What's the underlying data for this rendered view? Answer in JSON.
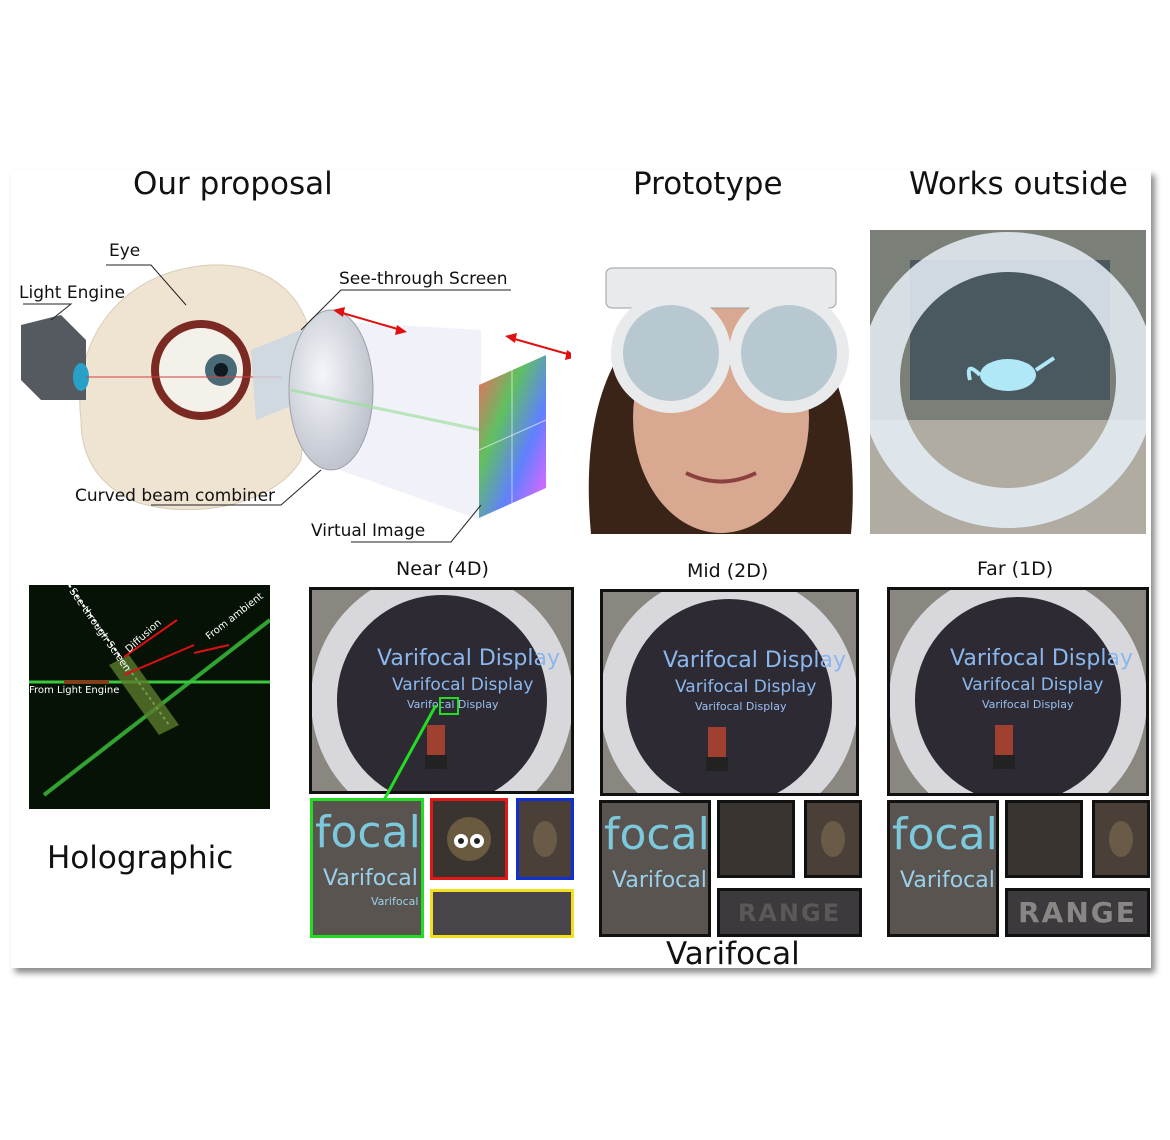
{
  "headings": {
    "proposal": "Our proposal",
    "prototype": "Prototype",
    "outside": "Works outside",
    "holographic": "Holographic",
    "varifocal": "Varifocal"
  },
  "diagram_labels": {
    "eye": "Eye",
    "light_engine": "Light Engine",
    "see_through_screen": "See-through Screen",
    "curved_beam_combiner": "Curved beam combiner",
    "virtual_image": "Virtual Image"
  },
  "holographic_labels": {
    "see_through_screen": "See-through Screen",
    "diffusion": "Diffusion",
    "from_ambient": "From ambient",
    "from_light_engine": "From Light Engine"
  },
  "focus_panels": [
    {
      "label": "Near (4D)",
      "line1": "Varifocal Display",
      "line2": "Varifocal Display",
      "line3": "Varifocal Display"
    },
    {
      "label": "Mid (2D)",
      "line1": "Varifocal Display",
      "line2": "Varifocal Display",
      "line3": "Varifocal Display"
    },
    {
      "label": "Far (1D)",
      "line1": "Varifocal Display",
      "line2": "Varifocal Display",
      "line3": "Varifocal Display"
    }
  ],
  "crops": {
    "focal": "focal",
    "varifocal": "Varifocal",
    "range": "RANGE"
  },
  "colors": {
    "arrow_red": "#e01010",
    "inset_green": "#22dd22",
    "inset_red": "#e01818",
    "inset_blue": "#1030d0",
    "inset_yellow": "#f0e020"
  }
}
